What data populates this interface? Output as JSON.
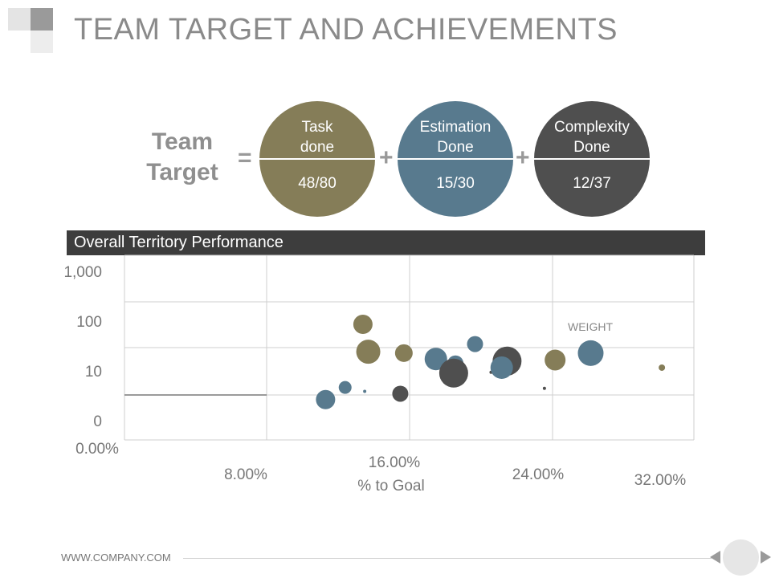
{
  "slide": {
    "title": "TEAM TARGET AND ACHIEVEMENTS",
    "footer": "WWW.COMPANY.COM"
  },
  "team_target": {
    "label_line1": "Team",
    "label_line2": "Target",
    "equals": "=",
    "plus": "+",
    "circles": [
      {
        "label_line1": "Task",
        "label_line2": "done",
        "value": "48/80",
        "color": "#857d58"
      },
      {
        "label_line1": "Estimation",
        "label_line2": "Done",
        "value": "15/30",
        "color": "#587a8e"
      },
      {
        "label_line1": "Complexity",
        "label_line2": "Done",
        "value": "12/37",
        "color": "#4f4f4f"
      }
    ]
  },
  "colors": {
    "olive": "#857d58",
    "steel": "#587a8e",
    "charcoal": "#4f4f4f",
    "bar": "#3d3d3d",
    "grid": "#cfcfcf",
    "tick": "#777777"
  },
  "chart_data": {
    "type": "scatter",
    "title": "Overall Territory Performance",
    "xlabel": "% to Goal",
    "ylabel": "",
    "annotation": "WEIGHT",
    "x_ticks": [
      "0.00%",
      "8.00%",
      "16.00%",
      "24.00%",
      "32.00%"
    ],
    "y_ticks": [
      "0",
      "10",
      "100",
      "1,000"
    ],
    "xlim": [
      0,
      32
    ],
    "y_scale": "log-like (0, 10, 100, 1,000)",
    "grid": true,
    "points": [
      {
        "x": 11.3,
        "y": 1.1,
        "size": 12,
        "color": "steel"
      },
      {
        "x": 12.4,
        "y": 2.1,
        "size": 8,
        "color": "steel"
      },
      {
        "x": 13.5,
        "y": 1.7,
        "size": 2,
        "color": "steel"
      },
      {
        "x": 13.4,
        "y": 60,
        "size": 12,
        "color": "olive"
      },
      {
        "x": 13.7,
        "y": 14,
        "size": 15,
        "color": "olive"
      },
      {
        "x": 15.5,
        "y": 1.5,
        "size": 10,
        "color": "charcoal"
      },
      {
        "x": 15.7,
        "y": 13,
        "size": 11,
        "color": "olive"
      },
      {
        "x": 17.5,
        "y": 9.5,
        "size": 14,
        "color": "steel"
      },
      {
        "x": 18.6,
        "y": 7.5,
        "size": 10,
        "color": "steel"
      },
      {
        "x": 18.5,
        "y": 4.5,
        "size": 18,
        "color": "charcoal"
      },
      {
        "x": 19.7,
        "y": 21,
        "size": 10,
        "color": "steel"
      },
      {
        "x": 20.6,
        "y": 4.7,
        "size": 2,
        "color": "charcoal"
      },
      {
        "x": 21.5,
        "y": 8.5,
        "size": 18,
        "color": "charcoal"
      },
      {
        "x": 21.2,
        "y": 6,
        "size": 14,
        "color": "steel"
      },
      {
        "x": 23.6,
        "y": 2,
        "size": 2,
        "color": "charcoal"
      },
      {
        "x": 24.2,
        "y": 9,
        "size": 13,
        "color": "olive"
      },
      {
        "x": 26.2,
        "y": 13,
        "size": 16,
        "color": "steel"
      },
      {
        "x": 30.2,
        "y": 6,
        "size": 4,
        "color": "olive"
      }
    ]
  }
}
